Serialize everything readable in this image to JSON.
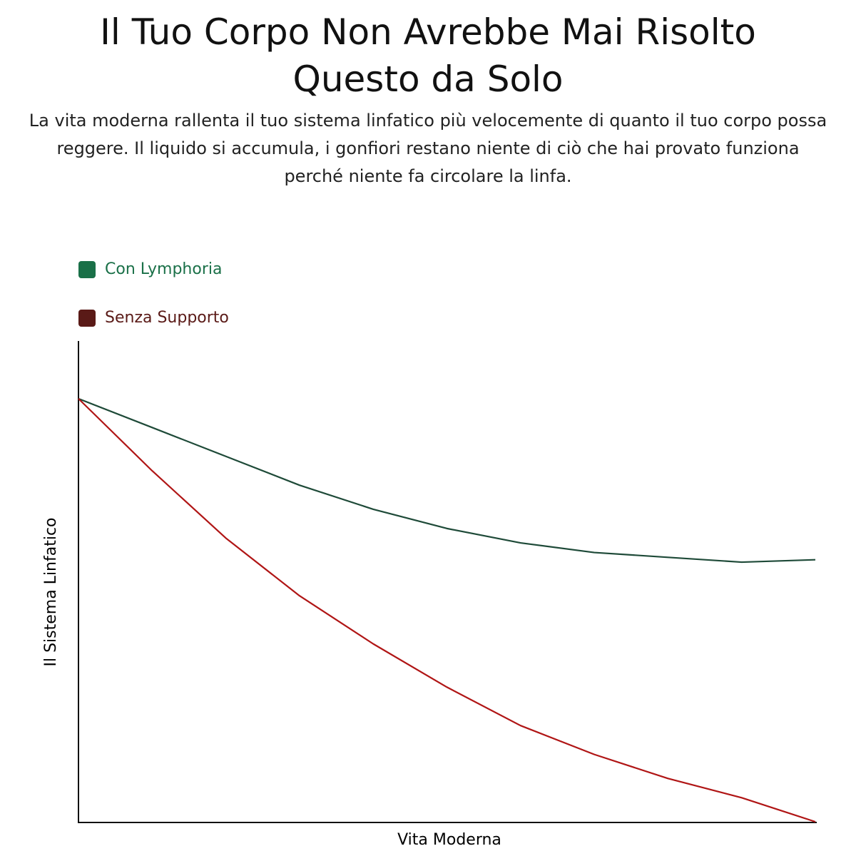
{
  "chart_data": {
    "type": "line",
    "title": "Il Tuo Corpo Non Avrebbe Mai Risolto Questo da Solo",
    "subtitle": "La vita moderna rallenta il tuo sistema linfatico più velocemente di quanto il tuo corpo possa reggere. Il liquido si accumula, i gonfiori restano niente di ciò che hai provato funziona perché niente fa circolare la linfa.",
    "x_label": "Vita Moderna",
    "y_label": "Il Sistema Linfatico",
    "x": [
      0,
      1,
      2,
      3,
      4,
      5,
      6,
      7,
      8,
      9,
      10
    ],
    "xlim": [
      0,
      10
    ],
    "ylim": [
      0,
      100
    ],
    "grid": false,
    "legend": "top-left",
    "series": [
      {
        "name": "Con Lymphoria",
        "color": "#1e4a38",
        "legend_color": "#1a7048",
        "values": [
          88,
          82,
          76,
          70,
          65,
          61,
          58,
          56,
          55,
          54,
          54.5
        ]
      },
      {
        "name": "Senza Supporto",
        "color": "#b01515",
        "legend_color": "#5a1a17",
        "values": [
          88,
          73,
          59,
          47,
          37,
          28,
          20,
          14,
          9,
          5,
          0
        ]
      }
    ]
  }
}
